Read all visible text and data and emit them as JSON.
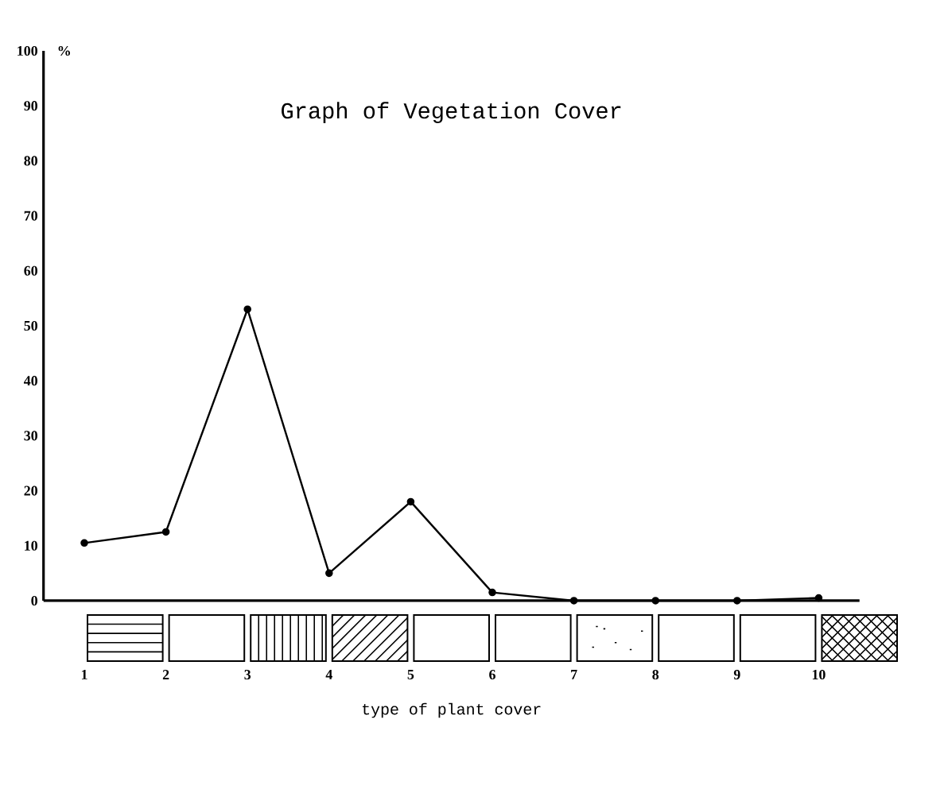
{
  "chart_data": {
    "type": "line",
    "title": "Graph of Vegetation Cover",
    "xlabel": "type of plant cover",
    "ylabel": "%",
    "categories": [
      "1",
      "2",
      "3",
      "4",
      "5",
      "6",
      "7",
      "8",
      "9",
      "10"
    ],
    "series": [
      {
        "color": "#000000",
        "values": [
          10.5,
          12.5,
          53,
          5,
          18,
          1.5,
          0,
          0,
          0,
          0.5
        ]
      }
    ],
    "ylim": [
      0,
      100
    ],
    "yticks": [
      0,
      10,
      20,
      30,
      40,
      50,
      60,
      70,
      80,
      90,
      100
    ],
    "marker": "circle",
    "line_style": "solid"
  }
}
